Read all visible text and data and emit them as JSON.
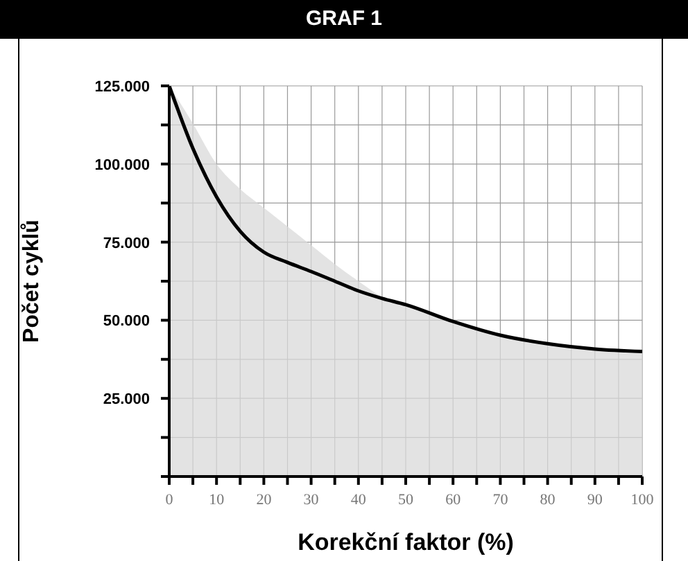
{
  "chart_data": {
    "type": "line",
    "title": "GRAF 1",
    "xlabel": "Korekční faktor (%)",
    "ylabel": "Počet cyklů",
    "xlim": [
      0,
      100
    ],
    "xticks": [
      0,
      {
        "value": 5,
        "label": null
      },
      10,
      {
        "value": 15,
        "label": null
      },
      20,
      {
        "value": 25,
        "label": null
      },
      30,
      {
        "value": 35,
        "label": null
      },
      40,
      {
        "value": 45,
        "label": null
      },
      50,
      {
        "value": 55,
        "label": null
      },
      60,
      {
        "value": 65,
        "label": null
      },
      70,
      {
        "value": 75,
        "label": null
      },
      80,
      {
        "value": 85,
        "label": null
      },
      90,
      {
        "value": 95,
        "label": null
      },
      100
    ],
    "ylim": [
      0,
      125000
    ],
    "yticks": [
      {
        "value": 0,
        "label": null
      },
      {
        "value": 12500,
        "label": null
      },
      {
        "value": 25000,
        "label": "25.000"
      },
      {
        "value": 37500,
        "label": null
      },
      {
        "value": 50000,
        "label": "50.000"
      },
      {
        "value": 62500,
        "label": null
      },
      {
        "value": 75000,
        "label": "75.000"
      },
      {
        "value": 87500,
        "label": null
      },
      {
        "value": 100000,
        "label": "100.000"
      },
      {
        "value": 112500,
        "label": null
      },
      {
        "value": 125000,
        "label": "125.000"
      }
    ],
    "grid": true,
    "legend": false,
    "marker": "none",
    "line_style": "solid",
    "series": [
      {
        "type": "area",
        "color": "#d9d9d9",
        "x": [
          0,
          5,
          10,
          15,
          20,
          25,
          30,
          35,
          40,
          45,
          50,
          60,
          70,
          80,
          90,
          100
        ],
        "values": [
          125000,
          113000,
          100000,
          92000,
          86000,
          80000,
          74000,
          68000,
          62500,
          57500,
          55000,
          49600,
          45200,
          42500,
          40800,
          40000
        ]
      },
      {
        "color": "#000000",
        "x": [
          0,
          5,
          10,
          15,
          20,
          25,
          30,
          35,
          40,
          45,
          50,
          60,
          70,
          80,
          90,
          100
        ],
        "values": [
          125000,
          105000,
          89500,
          78500,
          71800,
          68500,
          65600,
          62500,
          59400,
          57000,
          55000,
          49600,
          45200,
          42500,
          40800,
          40000
        ]
      }
    ]
  }
}
